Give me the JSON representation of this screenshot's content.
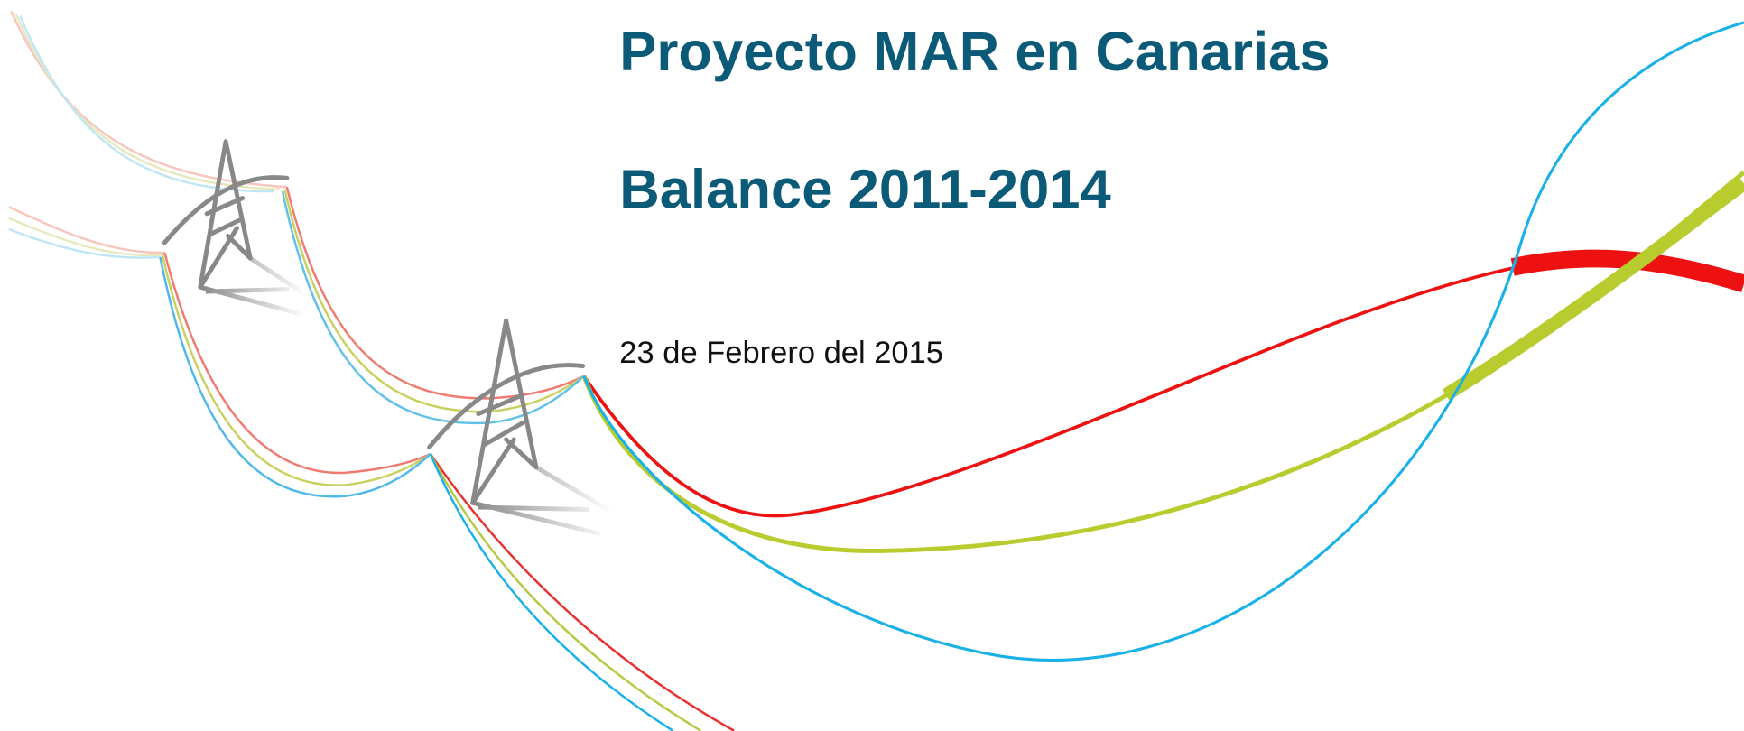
{
  "slide": {
    "title": "Proyecto MAR en Canarias",
    "subtitle": "Balance 2011-2014",
    "date": "23 de Febrero del 2015"
  }
}
